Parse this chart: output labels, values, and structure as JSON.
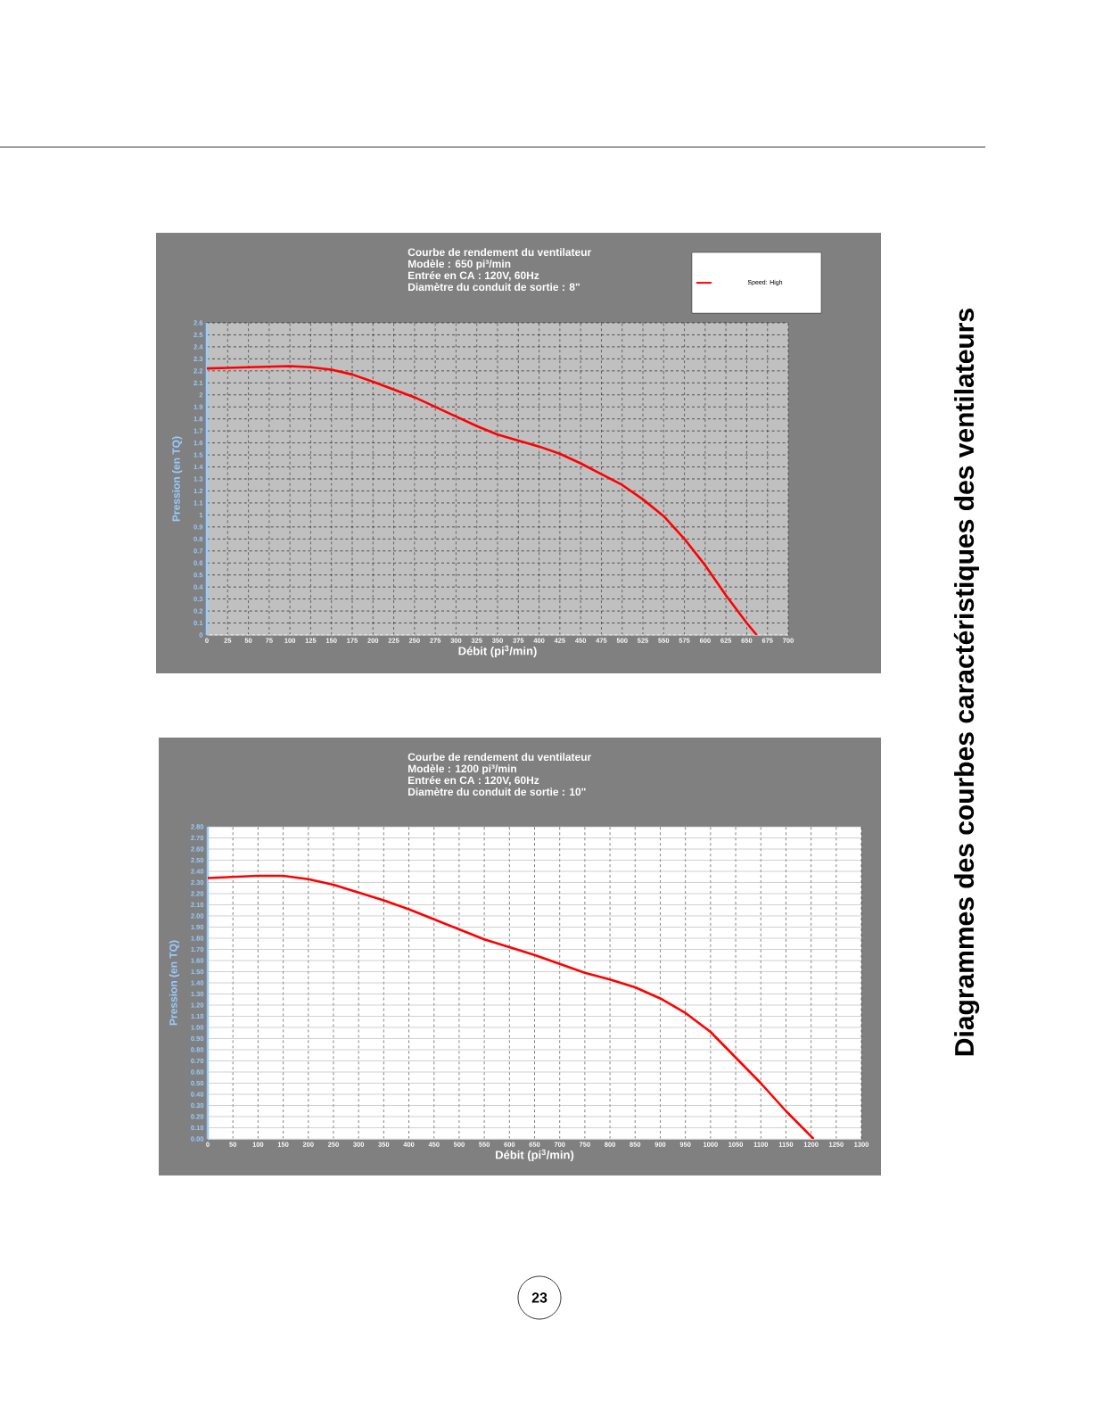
{
  "chart_data": [
    {
      "type": "line",
      "title": "Courbe de rendement du ventilateur",
      "annotations": [
        "Modèle : 650 pi³/min",
        "Entrée en CA : 120V, 60Hz",
        "Diamètre du conduit de sortie : 8\""
      ],
      "xlabel": "Débit (pi$^{3}$/min)",
      "ylabel": "Pression (en TQ)",
      "x": [
        0,
        50,
        100,
        125,
        150,
        175,
        200,
        250,
        300,
        325,
        350,
        375,
        400,
        425,
        450,
        475,
        500,
        525,
        550,
        575,
        600,
        625,
        650,
        662
      ],
      "series": [
        {
          "name": "Speed: High",
          "color": "#ff0000",
          "values": [
            2.22,
            2.23,
            2.24,
            2.23,
            2.21,
            2.17,
            2.11,
            1.98,
            1.82,
            1.74,
            1.67,
            1.62,
            1.57,
            1.51,
            1.43,
            1.34,
            1.25,
            1.13,
            0.99,
            0.8,
            0.58,
            0.33,
            0.1,
            0
          ]
        }
      ],
      "xlim": [
        0,
        700
      ],
      "ylim": [
        0,
        2.6
      ],
      "xticks": [
        0,
        25,
        50,
        75,
        100,
        125,
        150,
        175,
        200,
        225,
        250,
        275,
        300,
        325,
        350,
        375,
        400,
        425,
        450,
        475,
        500,
        525,
        550,
        575,
        600,
        625,
        650,
        675,
        700
      ],
      "yticks": [
        0,
        0.1,
        0.2,
        0.3,
        0.4,
        0.5,
        0.6,
        0.7,
        0.8,
        0.9,
        1,
        1.1,
        1.2,
        1.3,
        1.4,
        1.5,
        1.6,
        1.7,
        1.8,
        1.9,
        2,
        2.1,
        2.2,
        2.3,
        2.4,
        2.5,
        2.6
      ],
      "grid": true,
      "legend": "top right"
    },
    {
      "type": "line",
      "title": "Courbe de rendement du ventilateur",
      "annotations": [
        "Modèle : 1200 pi³/min",
        "Entrée en CA : 120V, 60Hz",
        "Diamètre du conduit de sortie : 10\""
      ],
      "xlabel": "Débit (pi$^{3}$/min)",
      "ylabel": "Pression (en TQ)",
      "x": [
        0,
        50,
        100,
        150,
        200,
        250,
        300,
        350,
        400,
        450,
        500,
        550,
        600,
        650,
        700,
        750,
        800,
        850,
        900,
        950,
        1000,
        1050,
        1100,
        1150,
        1205
      ],
      "series": [
        {
          "color": "#ff0000",
          "values": [
            2.34,
            2.35,
            2.36,
            2.36,
            2.33,
            2.28,
            2.21,
            2.14,
            2.06,
            1.97,
            1.88,
            1.79,
            1.72,
            1.65,
            1.57,
            1.49,
            1.43,
            1.36,
            1.26,
            1.13,
            0.96,
            0.73,
            0.5,
            0.25,
            0
          ]
        }
      ],
      "xlim": [
        0,
        1300
      ],
      "ylim": [
        0,
        2.8
      ],
      "xticks": [
        0,
        50,
        100,
        150,
        200,
        250,
        300,
        350,
        400,
        450,
        500,
        550,
        600,
        650,
        700,
        750,
        800,
        850,
        900,
        950,
        1000,
        1050,
        1100,
        1150,
        1200,
        1250,
        1300
      ],
      "yticks": [
        {
          "value": 0,
          "label": "0.00"
        },
        {
          "value": 0.1,
          "label": "0.10"
        },
        {
          "value": 0.2,
          "label": "0.20"
        },
        {
          "value": 0.3,
          "label": "0.30"
        },
        {
          "value": 0.4,
          "label": "0.40"
        },
        {
          "value": 0.5,
          "label": "0.50"
        },
        {
          "value": 0.6,
          "label": "0.60"
        },
        {
          "value": 0.7,
          "label": "0.70"
        },
        {
          "value": 0.8,
          "label": "0.80"
        },
        {
          "value": 0.9,
          "label": "0.90"
        },
        {
          "value": 1,
          "label": "1.00"
        },
        {
          "value": 1.1,
          "label": "1.10"
        },
        {
          "value": 1.2,
          "label": "1.20"
        },
        {
          "value": 1.3,
          "label": "1.30"
        },
        {
          "value": 1.4,
          "label": "1.40"
        },
        {
          "value": 1.5,
          "label": "1.50"
        },
        {
          "value": 1.6,
          "label": "1.60"
        },
        {
          "value": 1.7,
          "label": "1.70"
        },
        {
          "value": 1.8,
          "label": "1.80"
        },
        {
          "value": 1.9,
          "label": "1.90"
        },
        {
          "value": 2,
          "label": "2.00"
        },
        {
          "value": 2.1,
          "label": "2.10"
        },
        {
          "value": 2.2,
          "label": "2.20"
        },
        {
          "value": 2.3,
          "label": "2.30"
        },
        {
          "value": 2.4,
          "label": "2.40"
        },
        {
          "value": 2.5,
          "label": "2.50"
        },
        {
          "value": 2.6,
          "label": "2.60"
        },
        {
          "value": 2.7,
          "label": "2.70"
        },
        {
          "value": 2.8,
          "label": "2.80"
        }
      ],
      "grid": true
    },
    {
      "type": "other",
      "title": "Diagrammes des courbes caractéristiques des ventilateurs",
      "annotations": [
        "23"
      ]
    }
  ]
}
